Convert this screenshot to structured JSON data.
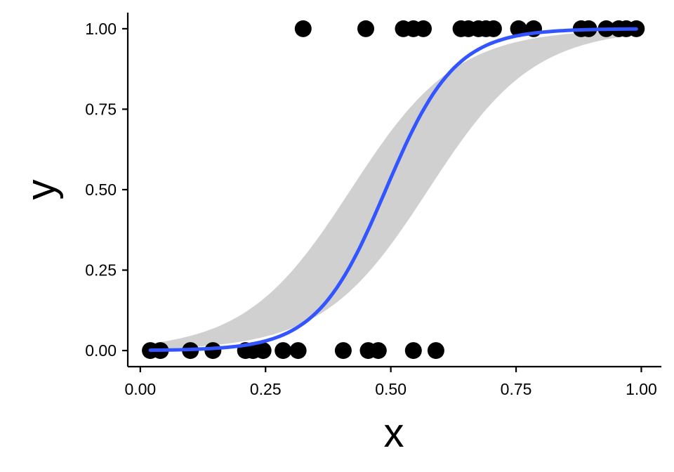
{
  "chart_data": {
    "type": "scatter",
    "xlabel": "x",
    "ylabel": "y",
    "xlim": [
      -0.025,
      1.04
    ],
    "ylim": [
      -0.05,
      1.05
    ],
    "x_ticks": [
      0.0,
      0.25,
      0.5,
      0.75,
      1.0
    ],
    "x_tick_labels": [
      "0.00",
      "0.25",
      "0.50",
      "0.75",
      "1.00"
    ],
    "y_ticks": [
      0.0,
      0.25,
      0.5,
      0.75,
      1.0
    ],
    "y_tick_labels": [
      "0.00",
      "0.25",
      "0.50",
      "0.75",
      "1.00"
    ],
    "grid": false,
    "legend": "none",
    "points": [
      {
        "x": 0.02,
        "y": 0
      },
      {
        "x": 0.04,
        "y": 0
      },
      {
        "x": 0.1,
        "y": 0
      },
      {
        "x": 0.145,
        "y": 0
      },
      {
        "x": 0.21,
        "y": 0
      },
      {
        "x": 0.225,
        "y": 0
      },
      {
        "x": 0.245,
        "y": 0
      },
      {
        "x": 0.285,
        "y": 0
      },
      {
        "x": 0.315,
        "y": 0
      },
      {
        "x": 0.405,
        "y": 0
      },
      {
        "x": 0.455,
        "y": 0
      },
      {
        "x": 0.475,
        "y": 0
      },
      {
        "x": 0.545,
        "y": 0
      },
      {
        "x": 0.59,
        "y": 0
      },
      {
        "x": 0.325,
        "y": 1
      },
      {
        "x": 0.45,
        "y": 1
      },
      {
        "x": 0.525,
        "y": 1
      },
      {
        "x": 0.545,
        "y": 1
      },
      {
        "x": 0.565,
        "y": 1
      },
      {
        "x": 0.64,
        "y": 1
      },
      {
        "x": 0.655,
        "y": 1
      },
      {
        "x": 0.675,
        "y": 1
      },
      {
        "x": 0.69,
        "y": 1
      },
      {
        "x": 0.705,
        "y": 1
      },
      {
        "x": 0.755,
        "y": 1
      },
      {
        "x": 0.785,
        "y": 1
      },
      {
        "x": 0.88,
        "y": 1
      },
      {
        "x": 0.895,
        "y": 1
      },
      {
        "x": 0.93,
        "y": 1
      },
      {
        "x": 0.955,
        "y": 1
      },
      {
        "x": 0.97,
        "y": 1
      },
      {
        "x": 0.99,
        "y": 1
      }
    ],
    "fit": {
      "method": "logistic",
      "midpoint": 0.49,
      "slope": 14.5,
      "x_range": [
        0.02,
        0.99
      ],
      "ci_lower_curve": {
        "midpoint": 0.575,
        "slope": 9.5
      },
      "ci_upper_curve": {
        "midpoint": 0.42,
        "slope": 9.5
      }
    },
    "colors": {
      "points": "#000000",
      "line": "#3355ff",
      "ribbon": "#d0d0d0",
      "axis": "#000000"
    }
  }
}
